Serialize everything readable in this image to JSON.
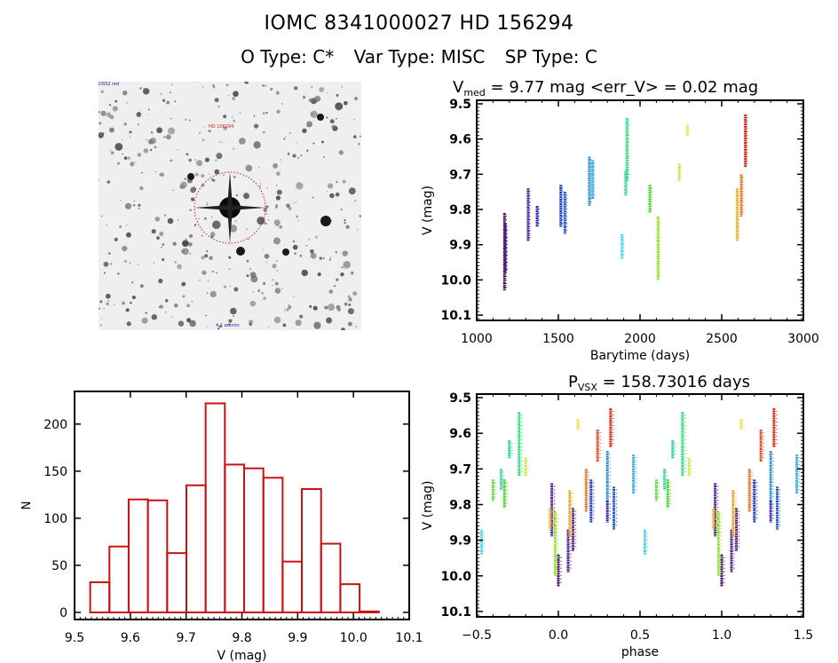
{
  "header": {
    "title": "IOMC 8341000027    HD 156294",
    "o_type": "O Type: C*",
    "var_type": "Var Type: MISC",
    "sp_type": "SP Type: C"
  },
  "sky_image": {
    "label_top_left": "DSS2 red",
    "label_target": "HD 156294",
    "label_bottom": "4.1 arcmin",
    "label_bottom_left": "N",
    "circle_color": "#cc2020"
  },
  "chart_data": [
    {
      "id": "lightcurve",
      "type": "scatter",
      "title_main": "V",
      "title_sub": "med",
      "title_rest": " = 9.77 mag <err_V> = 0.02 mag",
      "xlabel": "Barytime (days)",
      "ylabel": "V (mag)",
      "xlim": [
        1000,
        3000
      ],
      "ylim": [
        10.115,
        9.49
      ],
      "xticks": [
        1000,
        1500,
        2000,
        2500,
        3000
      ],
      "yticks": [
        9.5,
        9.6,
        9.7,
        9.8,
        9.9,
        10.0,
        10.1
      ],
      "ytick_labels": [
        "9.5",
        "9.6",
        "9.7",
        "9.8",
        "9.9",
        "10.0",
        "10.1"
      ],
      "segments": [
        {
          "t": 1170,
          "vmin": 9.81,
          "vmax": 10.03,
          "color": "#3c0c5c"
        },
        {
          "t": 1176,
          "vmin": 9.84,
          "vmax": 9.98,
          "color": "#5a1a8c"
        },
        {
          "t": 1315,
          "vmin": 9.74,
          "vmax": 9.89,
          "color": "#4a1aa0"
        },
        {
          "t": 1370,
          "vmin": 9.79,
          "vmax": 9.85,
          "color": "#3020b0"
        },
        {
          "t": 1515,
          "vmin": 9.73,
          "vmax": 9.85,
          "color": "#1a3ac0"
        },
        {
          "t": 1540,
          "vmin": 9.75,
          "vmax": 9.87,
          "color": "#2050d0"
        },
        {
          "t": 1690,
          "vmin": 9.65,
          "vmax": 9.79,
          "color": "#2a8ac8"
        },
        {
          "t": 1710,
          "vmin": 9.66,
          "vmax": 9.77,
          "color": "#30a8d8"
        },
        {
          "t": 1890,
          "vmin": 9.87,
          "vmax": 9.94,
          "color": "#40d8e8"
        },
        {
          "t": 1912,
          "vmin": 9.69,
          "vmax": 9.76,
          "color": "#30d0b0"
        },
        {
          "t": 1920,
          "vmin": 9.54,
          "vmax": 9.72,
          "color": "#20e080"
        },
        {
          "t": 2060,
          "vmin": 9.73,
          "vmax": 9.81,
          "color": "#40d820"
        },
        {
          "t": 2110,
          "vmin": 9.82,
          "vmax": 10.0,
          "color": "#90e020"
        },
        {
          "t": 2240,
          "vmin": 9.67,
          "vmax": 9.72,
          "color": "#c8e840"
        },
        {
          "t": 2290,
          "vmin": 9.56,
          "vmax": 9.59,
          "color": "#e8e040"
        },
        {
          "t": 2595,
          "vmin": 9.74,
          "vmax": 9.89,
          "color": "#e8b020"
        },
        {
          "t": 2620,
          "vmin": 9.7,
          "vmax": 9.82,
          "color": "#e07020"
        },
        {
          "t": 2645,
          "vmin": 9.53,
          "vmax": 9.68,
          "color": "#d82010"
        }
      ]
    },
    {
      "id": "histogram",
      "type": "bar",
      "xlabel": "V (mag)",
      "ylabel": "N",
      "xlim": [
        9.5,
        10.1
      ],
      "ylim": [
        0,
        230
      ],
      "xticks": [
        9.5,
        9.6,
        9.7,
        9.8,
        9.9,
        10.0,
        10.1
      ],
      "xtick_labels": [
        "9.5",
        "9.6",
        "9.7",
        "9.8",
        "9.9",
        "10.0",
        "10.1"
      ],
      "yticks": [
        0,
        50,
        100,
        150,
        200
      ],
      "bin_start": 9.528,
      "bin_width": 0.0345,
      "values": [
        32,
        70,
        120,
        119,
        63,
        135,
        222,
        157,
        153,
        143,
        54,
        131,
        73,
        30,
        1
      ],
      "bar_color": "#cc1010"
    },
    {
      "id": "phased",
      "type": "scatter",
      "title_main": "P",
      "title_sub": "VSX",
      "title_rest": " = 158.73016 days",
      "period": 158.73016,
      "xlabel": "phase",
      "ylabel": "V (mag)",
      "xlim": [
        -0.5,
        1.5
      ],
      "ylim": [
        10.115,
        9.49
      ],
      "xticks": [
        -0.5,
        0.0,
        0.5,
        1.0,
        1.5
      ],
      "xtick_labels": [
        "−0.5",
        "0.0",
        "0.5",
        "1.0",
        "1.5"
      ],
      "yticks": [
        9.5,
        9.6,
        9.7,
        9.8,
        9.9,
        10.0,
        10.1
      ],
      "ytick_labels": [
        "9.5",
        "9.6",
        "9.7",
        "9.8",
        "9.9",
        "10.0",
        "10.1"
      ],
      "segments": [
        {
          "phase": 0.0,
          "vmin": 9.94,
          "vmax": 10.03,
          "color": "#3c0c5c"
        },
        {
          "phase": 0.06,
          "vmin": 9.87,
          "vmax": 9.99,
          "color": "#4a1a80"
        },
        {
          "phase": 0.09,
          "vmin": 9.81,
          "vmax": 9.93,
          "color": "#5a1a8c"
        },
        {
          "phase": -0.04,
          "vmin": 9.74,
          "vmax": 9.89,
          "color": "#4a1aa0"
        },
        {
          "phase": 0.3,
          "vmin": 9.79,
          "vmax": 9.85,
          "color": "#3020b0"
        },
        {
          "phase": 0.2,
          "vmin": 9.73,
          "vmax": 9.85,
          "color": "#1a3ac0"
        },
        {
          "phase": 0.34,
          "vmin": 9.75,
          "vmax": 9.87,
          "color": "#2050d0"
        },
        {
          "phase": 0.3,
          "vmin": 9.65,
          "vmax": 9.79,
          "color": "#2a8ac8"
        },
        {
          "phase": 0.46,
          "vmin": 9.66,
          "vmax": 9.77,
          "color": "#30a8d8"
        },
        {
          "phase": -0.47,
          "vmin": 9.87,
          "vmax": 9.94,
          "color": "#40d8e8"
        },
        {
          "phase": -0.35,
          "vmin": 9.7,
          "vmax": 9.76,
          "color": "#30d0b0"
        },
        {
          "phase": -0.3,
          "vmin": 9.62,
          "vmax": 9.67,
          "color": "#20d090"
        },
        {
          "phase": -0.24,
          "vmin": 9.54,
          "vmax": 9.72,
          "color": "#20e070"
        },
        {
          "phase": -0.4,
          "vmin": 9.73,
          "vmax": 9.79,
          "color": "#60d840"
        },
        {
          "phase": -0.33,
          "vmin": 9.73,
          "vmax": 9.81,
          "color": "#40d820"
        },
        {
          "phase": -0.02,
          "vmin": 9.82,
          "vmax": 10.0,
          "color": "#90e020"
        },
        {
          "phase": -0.2,
          "vmin": 9.67,
          "vmax": 9.72,
          "color": "#c8e840"
        },
        {
          "phase": 0.12,
          "vmin": 9.56,
          "vmax": 9.59,
          "color": "#e8e040"
        },
        {
          "phase": -0.05,
          "vmin": 9.81,
          "vmax": 9.87,
          "color": "#e8b020"
        },
        {
          "phase": 0.07,
          "vmin": 9.76,
          "vmax": 9.89,
          "color": "#e0a020"
        },
        {
          "phase": 0.17,
          "vmin": 9.7,
          "vmax": 9.82,
          "color": "#e07020"
        },
        {
          "phase": 0.24,
          "vmin": 9.59,
          "vmax": 9.68,
          "color": "#e04010"
        },
        {
          "phase": 0.32,
          "vmin": 9.53,
          "vmax": 9.64,
          "color": "#d82010"
        }
      ]
    }
  ]
}
